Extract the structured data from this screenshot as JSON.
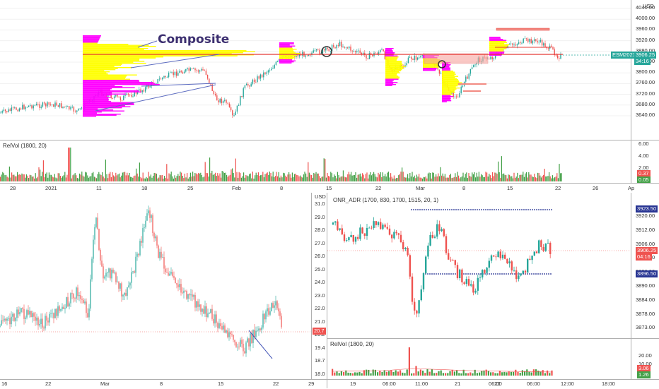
{
  "top_chart": {
    "currency": "USD",
    "price_levels": [
      "4040.00",
      "4000.00",
      "3960.00",
      "3920.00",
      "3880.00",
      "3840.00",
      "3800.00",
      "3760.00",
      "3720.00",
      "3680.00",
      "3640.00"
    ],
    "symbol_tag": "ESM2021",
    "last_price": "3906.25",
    "countdown": "34:16",
    "annotation": "Composite",
    "colors": {
      "accent": "#26a69a",
      "poc_line": "#e53935",
      "profile_yellow": "#ffff00",
      "profile_magenta": "#ff00ff",
      "candle_up": "#26a69a",
      "candle_down": "#ef5350",
      "volume_up": "#43a047",
      "volume_down": "#ef5350"
    }
  },
  "top_volume": {
    "title": "RelVol (1800, 20)",
    "levels": [
      "6.00",
      "4.00",
      "2.00"
    ],
    "tags": [
      "0.37",
      "0.05"
    ]
  },
  "top_time_axis": [
    "28",
    "2021",
    "11",
    "18",
    "25",
    "Feb",
    "8",
    "15",
    "22",
    "Mar",
    "8",
    "15",
    "22",
    "26",
    "Ap"
  ],
  "bottom_left": {
    "currency": "USD",
    "levels": [
      "31.0",
      "29.0",
      "28.0",
      "27.0",
      "26.0",
      "25.0",
      "24.0",
      "23.0",
      "22.0",
      "21.0",
      "20.2",
      "19.4",
      "18.7",
      "18.0"
    ],
    "tag": "20.7",
    "time_axis": [
      "16",
      "22",
      "Mar",
      "8",
      "15",
      "22",
      "29"
    ]
  },
  "bottom_right": {
    "title": "ONR_ADR (1700, 830, 1700, 1515, 20, 1)",
    "levels": [
      "3920.00",
      "3912.00",
      "3906.00",
      "3900.00",
      "3896.00",
      "3890.00",
      "3884.00",
      "3878.00",
      "3873.00"
    ],
    "tags": {
      "upper": "3923.50",
      "last": "3906.25",
      "countdown": "04:16",
      "lower": "3896.50"
    },
    "volume_title": "RelVol (1800, 20)",
    "volume_levels": [
      "20.00",
      "10.00"
    ],
    "volume_tags": [
      "3.06",
      "1.26"
    ],
    "time_axis": [
      "19",
      "06:00",
      "11:00",
      "21",
      "06:00",
      "22",
      "06:00",
      "12:00",
      "18:00"
    ]
  }
}
